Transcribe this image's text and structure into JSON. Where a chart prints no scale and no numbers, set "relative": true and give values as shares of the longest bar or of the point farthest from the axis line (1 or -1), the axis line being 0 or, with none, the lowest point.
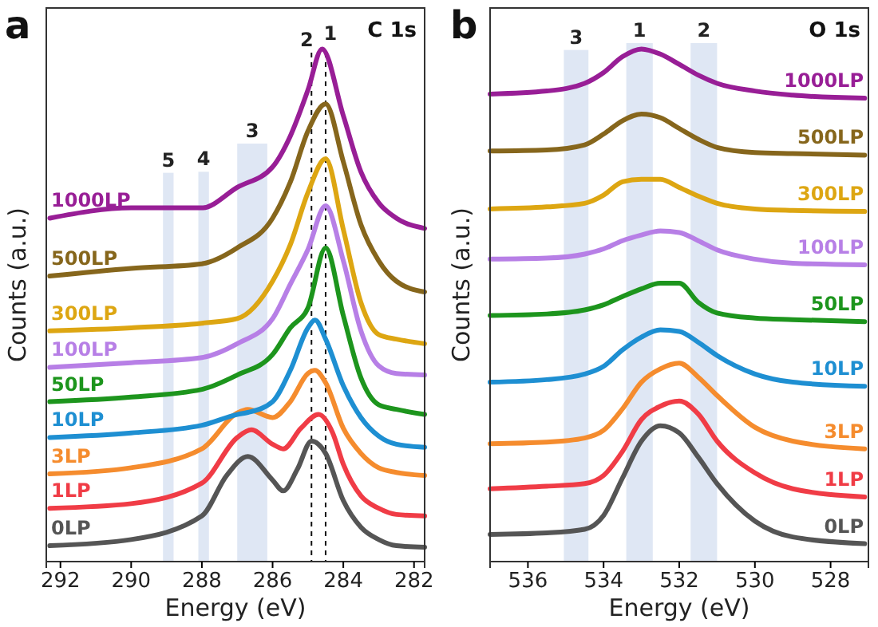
{
  "chart_data": [
    {
      "type": "line",
      "title": "a",
      "subtitle": "C 1s",
      "xlabel": "Energy (eV)",
      "ylabel": "Counts (a.u.)",
      "relative": true,
      "xlim": [
        292.4,
        281.7
      ],
      "xticks": [
        292,
        290,
        288,
        286,
        284,
        282
      ],
      "annotations": [
        "2",
        "1"
      ],
      "bands": [
        {
          "axis": "x",
          "from": 289.1,
          "to": 288.8,
          "label": "5",
          "color": "#dbe4f3"
        },
        {
          "axis": "x",
          "from": 288.1,
          "to": 287.8,
          "label": "4",
          "color": "#dbe4f3"
        },
        {
          "axis": "x",
          "from": 287.0,
          "to": 286.15,
          "label": "3",
          "color": "#dbe4f3"
        }
      ],
      "ref_lines": [
        {
          "axis": "x",
          "value": 284.9,
          "line_style": "dashed"
        },
        {
          "axis": "x",
          "value": 284.5,
          "line_style": "dashed"
        }
      ],
      "series": [
        {
          "name": "0LP",
          "color": "#555555",
          "x": [
            292.3,
            290,
            288,
            287.3,
            286.7,
            286,
            285.7,
            285.3,
            284.9,
            284.5,
            284,
            283.5,
            283,
            282.5,
            281.7
          ],
          "values": [
            0.031,
            0.043,
            0.089,
            0.168,
            0.205,
            0.159,
            0.138,
            0.18,
            0.235,
            0.211,
            0.119,
            0.067,
            0.043,
            0.031,
            0.028
          ]
        },
        {
          "name": "1LP",
          "color": "#f03c46",
          "x": [
            292.3,
            290,
            288,
            287,
            286.6,
            286,
            285.7,
            285.2,
            284.7,
            284.3,
            284,
            283.5,
            283,
            282.5,
            281.7
          ],
          "values": [
            0.104,
            0.113,
            0.153,
            0.242,
            0.257,
            0.229,
            0.22,
            0.26,
            0.287,
            0.251,
            0.19,
            0.128,
            0.104,
            0.092,
            0.089
          ]
        },
        {
          "name": "3LP",
          "color": "#f58c2e",
          "x": [
            292.3,
            290,
            288,
            287,
            286.7,
            286,
            285.5,
            285,
            284.8,
            284.5,
            284,
            283.5,
            283,
            282.5,
            281.7
          ],
          "values": [
            0.171,
            0.183,
            0.22,
            0.29,
            0.297,
            0.281,
            0.312,
            0.367,
            0.373,
            0.349,
            0.26,
            0.211,
            0.183,
            0.174,
            0.168
          ]
        },
        {
          "name": "10LP",
          "color": "#1e8fd2",
          "x": [
            292.3,
            290,
            288,
            287,
            286.7,
            286,
            285.5,
            285,
            284.8,
            284.5,
            284,
            283.5,
            283,
            282.5,
            281.7
          ],
          "values": [
            0.242,
            0.251,
            0.266,
            0.287,
            0.291,
            0.312,
            0.373,
            0.456,
            0.471,
            0.434,
            0.343,
            0.281,
            0.245,
            0.229,
            0.223
          ]
        },
        {
          "name": "50LP",
          "color": "#1d951d",
          "x": [
            292.3,
            290,
            288,
            287,
            286,
            285.5,
            285,
            284.5,
            284,
            283.5,
            283,
            282.5,
            281.7
          ],
          "values": [
            0.312,
            0.321,
            0.336,
            0.364,
            0.404,
            0.456,
            0.495,
            0.612,
            0.48,
            0.358,
            0.306,
            0.297,
            0.287
          ]
        },
        {
          "name": "100LP",
          "color": "#b77fe6",
          "x": [
            292.3,
            290,
            288,
            287,
            286,
            285.5,
            285,
            284.5,
            284,
            283.5,
            283,
            282.5,
            281.7
          ],
          "values": [
            0.379,
            0.388,
            0.398,
            0.425,
            0.474,
            0.541,
            0.609,
            0.694,
            0.587,
            0.45,
            0.382,
            0.367,
            0.364
          ]
        },
        {
          "name": "300LP",
          "color": "#dda612",
          "x": [
            292.3,
            290,
            288,
            287,
            286,
            285.5,
            285,
            284.5,
            284,
            283.5,
            283,
            282.5,
            281.7
          ],
          "values": [
            0.45,
            0.456,
            0.465,
            0.474,
            0.547,
            0.618,
            0.72,
            0.786,
            0.648,
            0.505,
            0.443,
            0.434,
            0.425
          ]
        },
        {
          "name": "500LP",
          "color": "#86661c",
          "x": [
            292.3,
            290,
            288,
            287,
            286,
            285.5,
            285,
            284.5,
            284,
            283.5,
            283,
            282.5,
            281.7
          ],
          "values": [
            0.557,
            0.572,
            0.581,
            0.612,
            0.67,
            0.74,
            0.84,
            0.893,
            0.78,
            0.657,
            0.587,
            0.547,
            0.526
          ]
        },
        {
          "name": "1000LP",
          "color": "#981e96",
          "x": [
            292.3,
            290,
            288,
            287,
            286,
            285.5,
            285,
            284.6,
            284,
            283.5,
            283,
            282.5,
            281.7
          ],
          "values": [
            0.67,
            0.69,
            0.69,
            0.73,
            0.77,
            0.83,
            0.92,
            1,
            0.87,
            0.76,
            0.7,
            0.67,
            0.65
          ]
        }
      ]
    },
    {
      "type": "line",
      "title": "b",
      "subtitle": "O 1s",
      "xlabel": "Energy (eV)",
      "ylabel": "Counts (a.u.)",
      "relative": true,
      "xlim": [
        537,
        527
      ],
      "xticks": [
        536,
        534,
        532,
        530,
        528
      ],
      "x": [
        537,
        535.5,
        534.5,
        534,
        533.5,
        533,
        532.5,
        532,
        531.5,
        531,
        530,
        529,
        527.1
      ],
      "bands": [
        {
          "axis": "x",
          "from": 535.05,
          "to": 534.4,
          "label": "3",
          "color": "#dbe4f3"
        },
        {
          "axis": "x",
          "from": 533.4,
          "to": 532.7,
          "label": "1",
          "color": "#dbe4f3"
        },
        {
          "axis": "x",
          "from": 531.7,
          "to": 531.0,
          "label": "2",
          "color": "#dbe4f3"
        }
      ],
      "series": [
        {
          "name": "0LP",
          "color": "#555555",
          "values": [
            0.053,
            0.056,
            0.063,
            0.09,
            0.163,
            0.235,
            0.265,
            0.251,
            0.204,
            0.152,
            0.079,
            0.048,
            0.035
          ]
        },
        {
          "name": "1LP",
          "color": "#f03c46",
          "values": [
            0.142,
            0.147,
            0.152,
            0.168,
            0.215,
            0.277,
            0.303,
            0.313,
            0.288,
            0.235,
            0.173,
            0.142,
            0.126
          ]
        },
        {
          "name": "3LP",
          "color": "#f58c2e",
          "values": [
            0.23,
            0.233,
            0.241,
            0.256,
            0.298,
            0.35,
            0.376,
            0.387,
            0.36,
            0.324,
            0.262,
            0.235,
            0.22
          ]
        },
        {
          "name": "10LP",
          "color": "#1e8fd2",
          "values": [
            0.35,
            0.355,
            0.366,
            0.381,
            0.413,
            0.438,
            0.452,
            0.449,
            0.428,
            0.402,
            0.366,
            0.35,
            0.342
          ]
        },
        {
          "name": "50LP",
          "color": "#1d951d",
          "values": [
            0.48,
            0.483,
            0.491,
            0.501,
            0.517,
            0.532,
            0.543,
            0.543,
            0.506,
            0.485,
            0.475,
            0.472,
            0.468
          ]
        },
        {
          "name": "100LP",
          "color": "#b77fe6",
          "values": [
            0.59,
            0.592,
            0.6,
            0.61,
            0.626,
            0.637,
            0.645,
            0.642,
            0.626,
            0.608,
            0.59,
            0.582,
            0.579
          ]
        },
        {
          "name": "300LP",
          "color": "#dda612",
          "values": [
            0.688,
            0.692,
            0.699,
            0.715,
            0.741,
            0.746,
            0.746,
            0.73,
            0.713,
            0.699,
            0.688,
            0.685,
            0.683
          ]
        },
        {
          "name": "500LP",
          "color": "#86661c",
          "values": [
            0.801,
            0.803,
            0.813,
            0.834,
            0.86,
            0.873,
            0.866,
            0.845,
            0.824,
            0.808,
            0.798,
            0.796,
            0.793
          ]
        },
        {
          "name": "1000LP",
          "color": "#981e96",
          "values": [
            0.912,
            0.918,
            0.933,
            0.954,
            0.985,
            1,
            0.99,
            0.97,
            0.949,
            0.933,
            0.918,
            0.91,
            0.904
          ]
        }
      ]
    }
  ]
}
